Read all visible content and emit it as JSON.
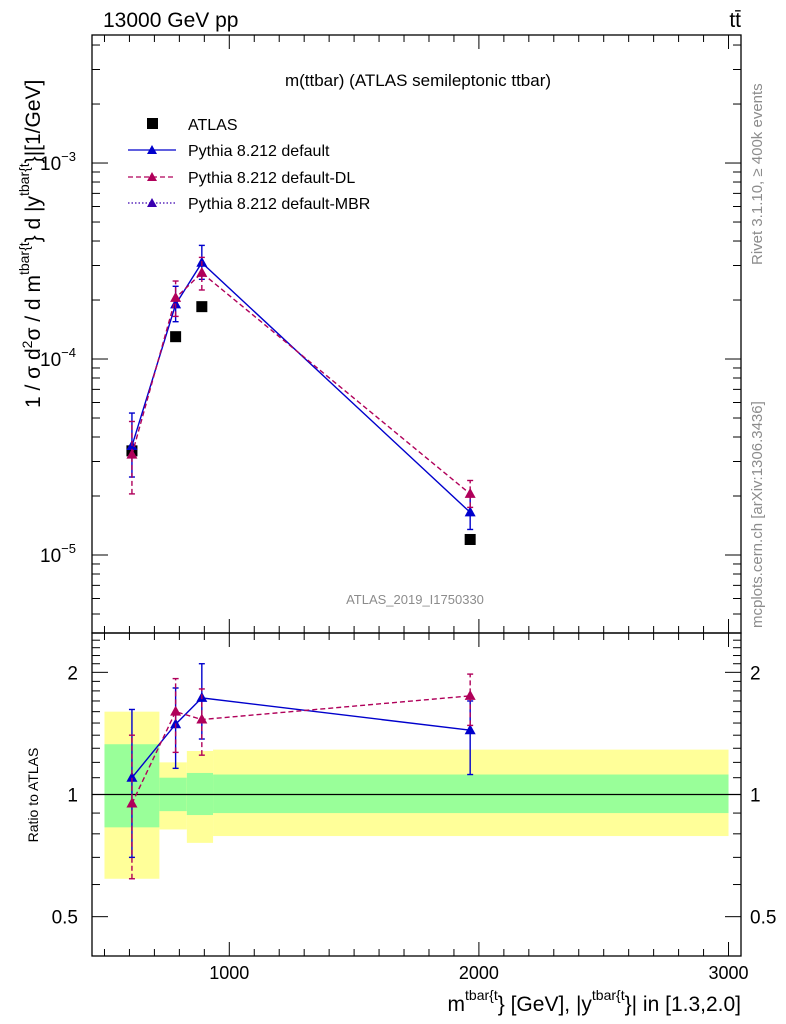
{
  "header": {
    "energy_label": "13000 GeV pp",
    "process_label": "tt̄"
  },
  "side": {
    "rivet_label": "Rivet 3.1.10, ≥ 400k events",
    "site_label": "mcplots.cern.ch [arXiv:1306.3436]"
  },
  "chart_data": {
    "type": "line",
    "title": "m(ttbar) (ATLAS semileptonic ttbar)",
    "watermark": "ATLAS_2019_I1750330",
    "xlabel": {
      "base": "m",
      "sup1": "tbar{t",
      "mid": "} [GeV], |y",
      "sup2": "tbar{t",
      "end": "}| in [1.3,2.0]"
    },
    "ylabel": "1 / σ d²σ / d m^{tbar{t}} d |y^{tbar{t}}|[1/GeV]",
    "ylabel_parts": {
      "pre": "1 / σ d",
      "sup2": "2",
      "mid": "σ / d m",
      "supA": "tbar{t",
      "mid2": "} d |y",
      "supB": "tbar{t",
      "end": "}|[1/GeV]"
    },
    "xlim": [
      450,
      3050
    ],
    "ylim": [
      4e-06,
      0.0045
    ],
    "y_scale": "log",
    "x_ticks": [
      1000,
      2000,
      3000
    ],
    "x_tick_labels": [
      "1000",
      "2000",
      "3000"
    ],
    "y_ticks": [
      1e-05,
      0.0001,
      0.001
    ],
    "y_tick_labels": [
      {
        "base": "10",
        "exp": "−5"
      },
      {
        "base": "10",
        "exp": "−4"
      },
      {
        "base": "10",
        "exp": "−3"
      }
    ],
    "bin_edges": [
      500,
      720,
      830,
      935,
      3000
    ],
    "legend": [
      "ATLAS",
      "Pythia 8.212 default",
      "Pythia 8.212 default-DL",
      "Pythia 8.212 default-MBR"
    ],
    "legend_position": "top-left",
    "data": {
      "name": "ATLAS",
      "x": [
        610,
        785,
        890,
        1965
      ],
      "y": [
        3.4e-05,
        0.00013,
        0.000185,
        1.2e-05
      ]
    },
    "series": [
      {
        "name": "Pythia 8.212 default",
        "color": "#0000cc",
        "style": "solid",
        "x": [
          610,
          785,
          890,
          1965
        ],
        "y": [
          3.6e-05,
          0.00019,
          0.00031,
          1.65e-05
        ],
        "err_lo": [
          2.5e-05,
          0.000155,
          0.000255,
          1.35e-05
        ],
        "err_hi": [
          5.3e-05,
          0.000235,
          0.00038,
          2e-05
        ]
      },
      {
        "name": "Pythia 8.212 default-DL",
        "color": "#b0005a",
        "style": "dashed",
        "x": [
          610,
          785,
          890,
          1965
        ],
        "y": [
          3.25e-05,
          0.000205,
          0.000275,
          2.05e-05
        ],
        "err_lo": [
          2.05e-05,
          0.000165,
          0.000225,
          1.75e-05
        ],
        "err_hi": [
          4.8e-05,
          0.00025,
          0.00033,
          2.4e-05
        ]
      },
      {
        "name": "Pythia 8.212 default-MBR",
        "color": "#3a00b0",
        "style": "dotted",
        "x": [],
        "y": []
      }
    ],
    "ratio": {
      "ylabel": "Ratio to ATLAS",
      "ylim": [
        0.4,
        2.5
      ],
      "y_ticks": [
        0.5,
        1,
        2
      ],
      "y_tick_labels": [
        "0.5",
        "1",
        "2"
      ],
      "band_inner": [
        [
          0.83,
          1.33
        ],
        [
          0.91,
          1.1
        ],
        [
          0.89,
          1.13
        ],
        [
          0.9,
          1.12
        ]
      ],
      "band_outer": [
        [
          0.62,
          1.6
        ],
        [
          0.82,
          1.2
        ],
        [
          0.76,
          1.28
        ],
        [
          0.79,
          1.29
        ]
      ],
      "series": [
        {
          "name": "Pythia 8.212 default",
          "color": "#0000cc",
          "style": "solid",
          "x": [
            610,
            785,
            890,
            1965
          ],
          "y": [
            1.1,
            1.49,
            1.73,
            1.44
          ],
          "err_lo": [
            0.7,
            1.16,
            1.37,
            1.12
          ],
          "err_hi": [
            1.62,
            1.83,
            2.1,
            1.7
          ]
        },
        {
          "name": "Pythia 8.212 default-DL",
          "color": "#b0005a",
          "style": "dashed",
          "x": [
            610,
            785,
            890,
            1965
          ],
          "y": [
            0.95,
            1.6,
            1.53,
            1.75
          ],
          "err_lo": [
            0.62,
            1.27,
            1.25,
            1.48
          ],
          "err_hi": [
            1.4,
            1.93,
            1.82,
            1.98
          ]
        }
      ]
    }
  }
}
